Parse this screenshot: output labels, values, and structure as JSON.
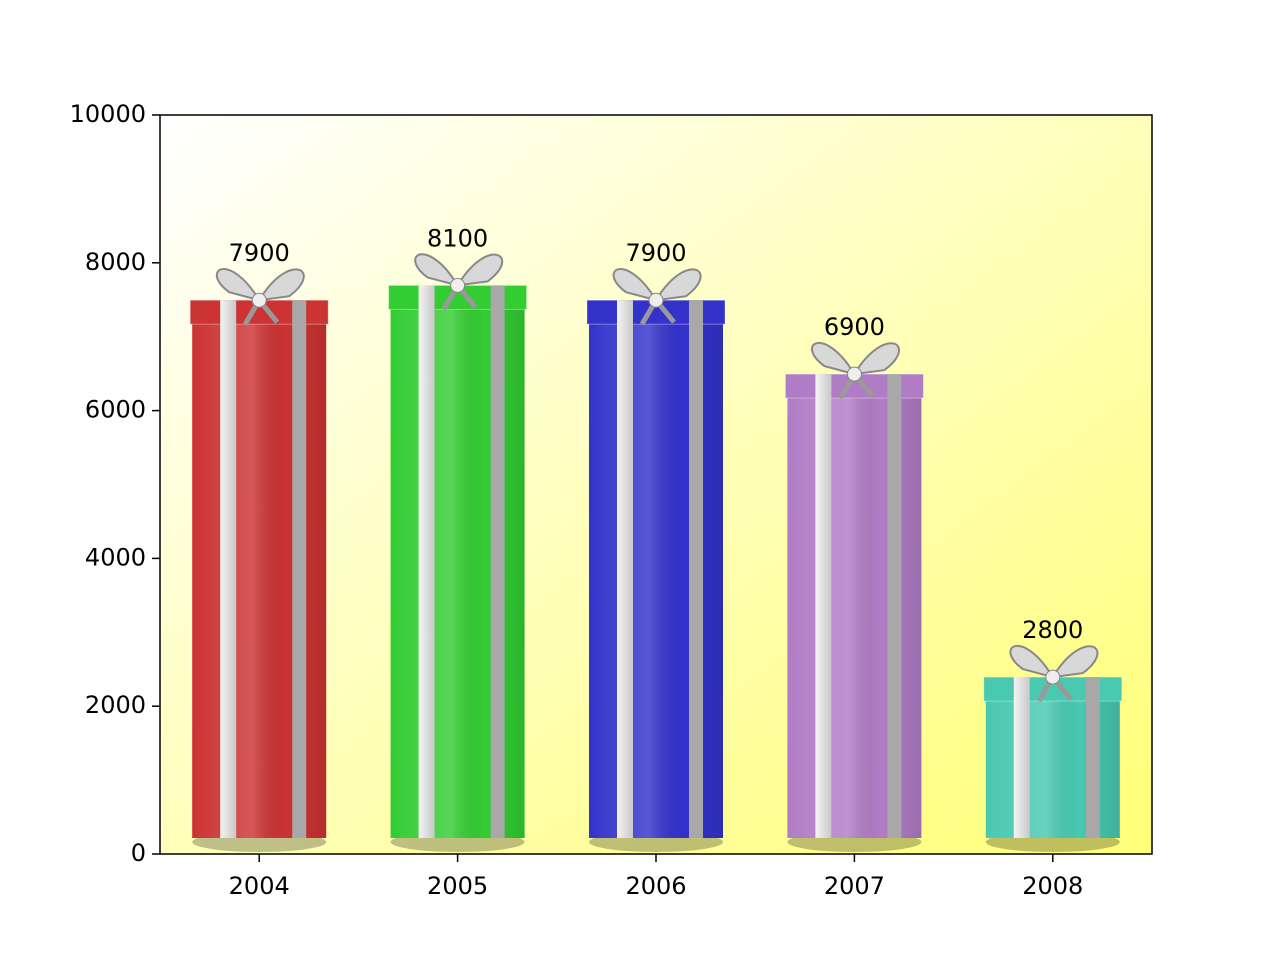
{
  "chart_data": {
    "type": "bar",
    "categories": [
      "2004",
      "2005",
      "2006",
      "2007",
      "2008"
    ],
    "values": [
      7900,
      8100,
      7900,
      6900,
      2800
    ],
    "colors": [
      "#cc3333",
      "#33cc33",
      "#3333cc",
      "#b07cc6",
      "#48c9b0"
    ],
    "ylim": [
      0,
      10000
    ],
    "yticks": [
      0,
      2000,
      4000,
      6000,
      8000,
      10000
    ],
    "grid": false
  }
}
